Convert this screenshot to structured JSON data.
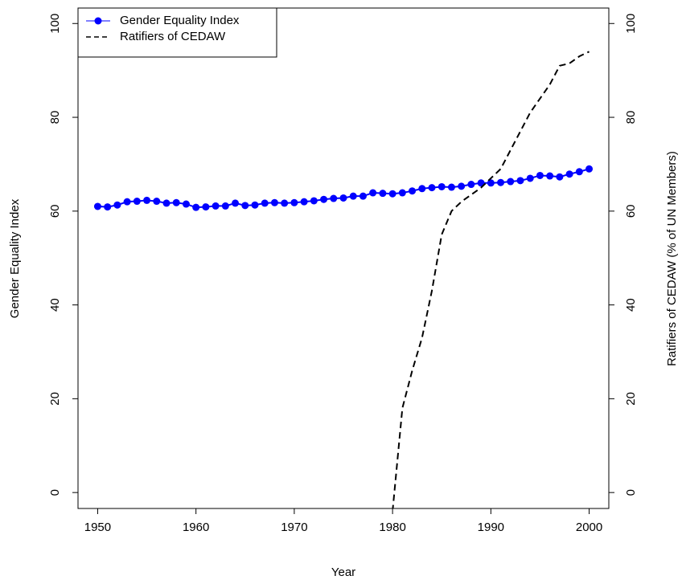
{
  "chart_data": {
    "type": "line",
    "x_label": "Year",
    "y_label": "Gender Equality Index",
    "y2_label": "Ratifiers of CEDAW (% of UN Members)",
    "x": [
      1950,
      1951,
      1952,
      1953,
      1954,
      1955,
      1956,
      1957,
      1958,
      1959,
      1960,
      1961,
      1962,
      1963,
      1964,
      1965,
      1966,
      1967,
      1968,
      1969,
      1970,
      1971,
      1972,
      1973,
      1974,
      1975,
      1976,
      1977,
      1978,
      1979,
      1980,
      1981,
      1982,
      1983,
      1984,
      1985,
      1986,
      1987,
      1988,
      1989,
      1990,
      1991,
      1992,
      1993,
      1994,
      1995,
      1996,
      1997,
      1998,
      1999,
      2000
    ],
    "series": [
      {
        "name": "Gender Equality Index",
        "color": "#0000ff",
        "axis": "y",
        "marker": true,
        "dashed": false,
        "values": [
          61,
          60.9,
          61.3,
          62,
          62.1,
          62.3,
          62.1,
          61.7,
          61.8,
          61.5,
          60.8,
          60.9,
          61.1,
          61.1,
          61.7,
          61.2,
          61.3,
          61.7,
          61.8,
          61.7,
          61.8,
          62,
          62.2,
          62.5,
          62.7,
          62.8,
          63.2,
          63.2,
          63.9,
          63.8,
          63.7,
          63.9,
          64.3,
          64.8,
          65,
          65.2,
          65.1,
          65.3,
          65.7,
          66,
          66,
          66.1,
          66.3,
          66.5,
          67,
          67.6,
          67.5,
          67.3,
          67.9,
          68.4,
          69
        ]
      },
      {
        "name": "Ratifiers of CEDAW",
        "color": "#000000",
        "axis": "y2",
        "marker": false,
        "dashed": true,
        "values": [
          null,
          null,
          null,
          null,
          null,
          null,
          null,
          null,
          null,
          null,
          null,
          null,
          null,
          null,
          null,
          null,
          null,
          null,
          null,
          null,
          null,
          null,
          null,
          null,
          null,
          null,
          null,
          null,
          null,
          null,
          -4,
          18,
          26,
          33,
          43,
          55,
          60,
          62,
          63.5,
          65,
          67,
          69,
          73,
          77,
          81,
          84,
          87,
          91,
          91.5,
          93,
          94
        ]
      }
    ],
    "xlim": [
      1948,
      2002
    ],
    "xticks": [
      1950,
      1960,
      1970,
      1980,
      1990,
      2000
    ],
    "ylim": [
      -3.4,
      103.3
    ],
    "yticks": [
      0,
      20,
      40,
      60,
      80,
      100
    ],
    "y2lim": [
      -3.4,
      103.3
    ],
    "y2ticks": [
      0,
      20,
      40,
      60,
      80,
      100
    ],
    "legend": "topleft"
  }
}
